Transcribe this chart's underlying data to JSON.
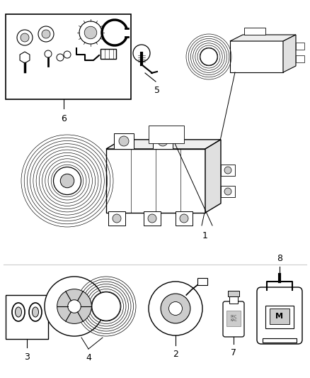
{
  "bg_color": "#ffffff",
  "line_color": "#000000",
  "gray_color": "#888888",
  "light_gray": "#cccccc",
  "dark_gray": "#444444",
  "label_fontsize": 9,
  "figsize": [
    4.38,
    5.33
  ],
  "dpi": 100,
  "parts": {
    "1_label": "1",
    "2_label": "2",
    "3_label": "3",
    "4_label": "4",
    "5_label": "5",
    "6_label": "6",
    "7_label": "7",
    "8_label": "8"
  }
}
